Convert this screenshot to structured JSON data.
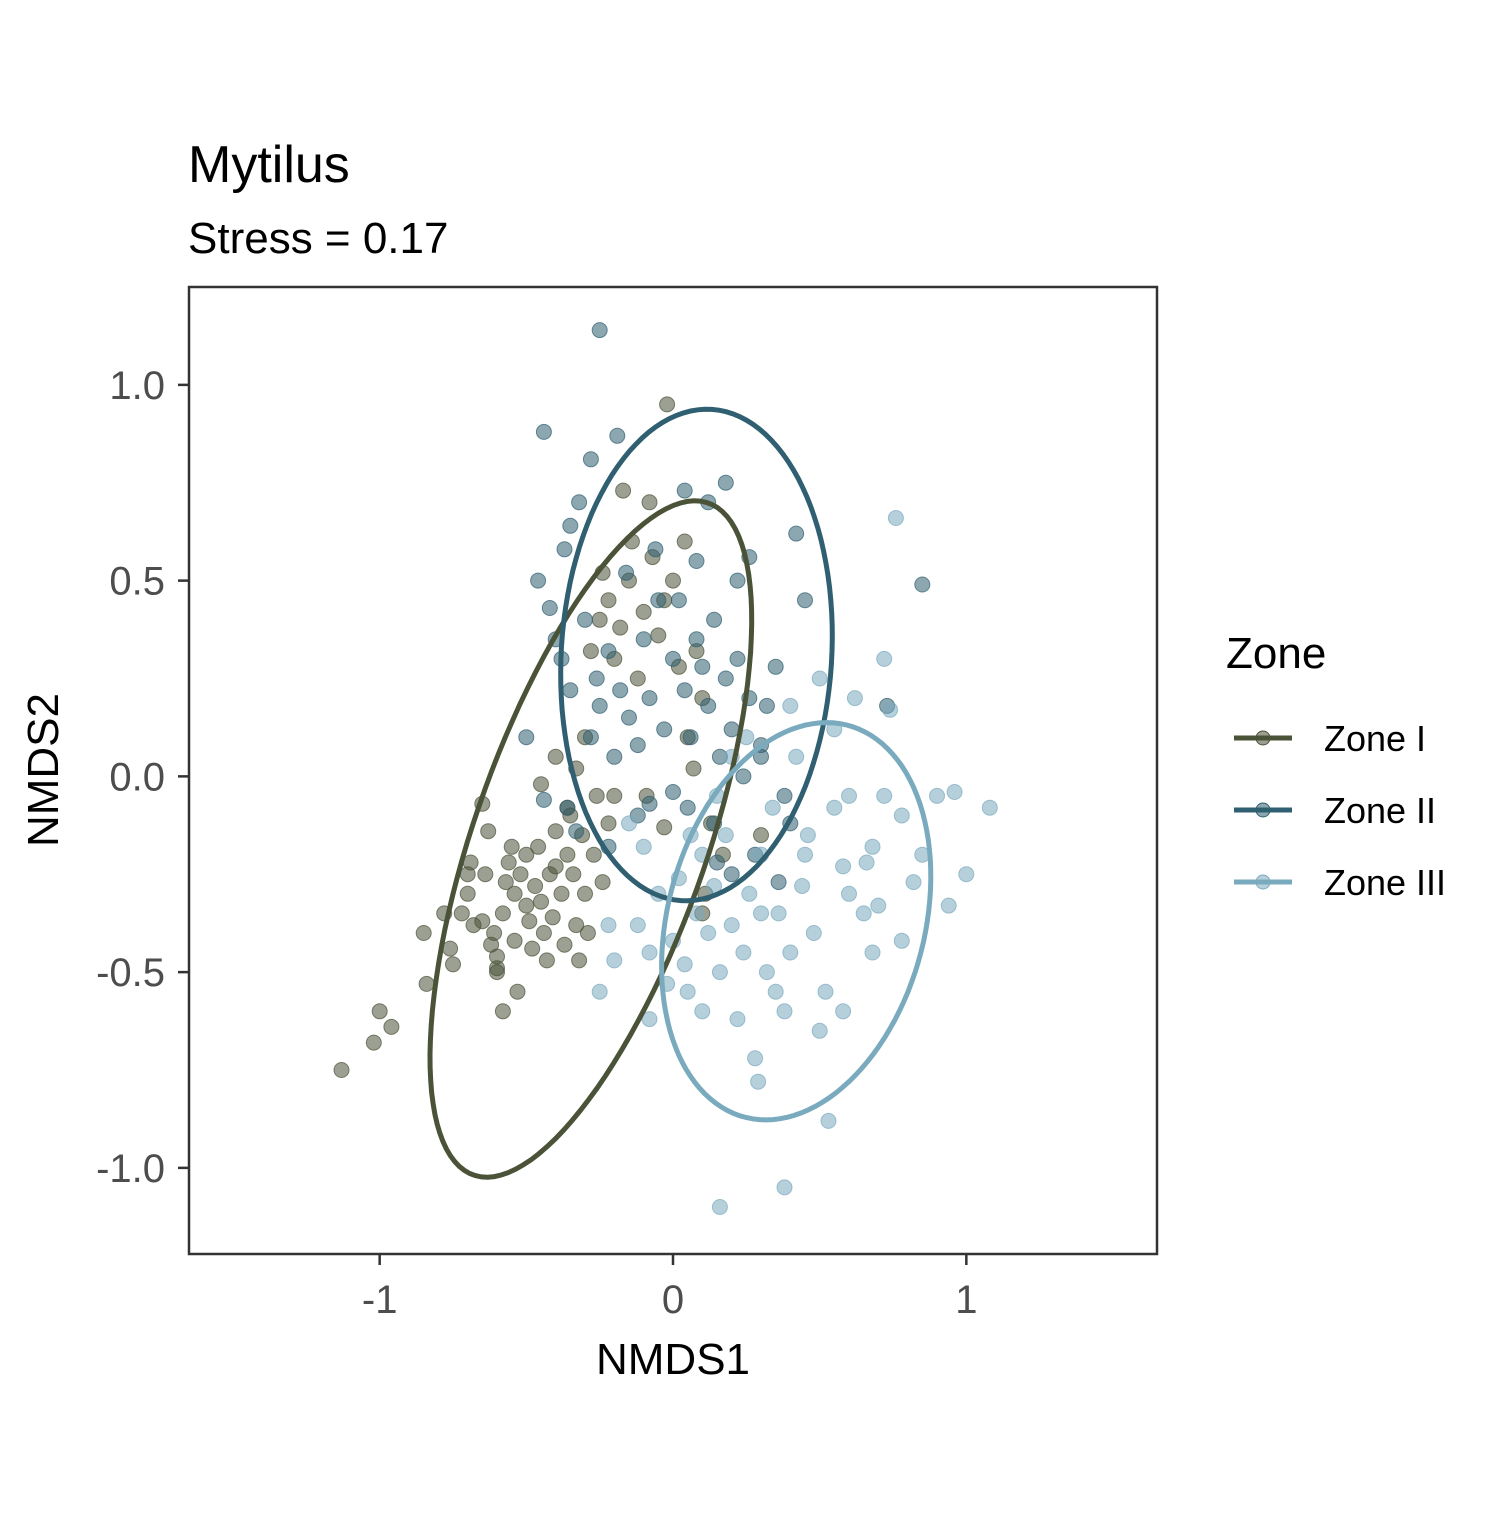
{
  "chart_data": {
    "type": "scatter",
    "title": "Mytilus",
    "subtitle": "Stress = 0.17",
    "xlabel": "NMDS1",
    "ylabel": "NMDS2",
    "xlim": [
      -1.65,
      1.65
    ],
    "ylim": [
      -1.22,
      1.25
    ],
    "x_ticks": [
      -1,
      0,
      1
    ],
    "x_tick_labels": [
      "-1",
      "0",
      "1"
    ],
    "y_ticks": [
      -1.0,
      -0.5,
      0.0,
      0.5,
      1.0
    ],
    "y_tick_labels": [
      "-1.0",
      "-0.5",
      "0.0",
      "0.5",
      "1.0"
    ],
    "grid": false,
    "legend": {
      "title": "Zone",
      "position": "right"
    },
    "series": [
      {
        "name": "Zone I",
        "color": "#4a5238",
        "ellipse": {
          "center": [
            -0.28,
            -0.16
          ],
          "semi_axes": [
            0.95,
            0.38
          ],
          "angle_deg": 63
        },
        "points": [
          [
            -1.13,
            -0.75
          ],
          [
            -1.02,
            -0.68
          ],
          [
            -1.0,
            -0.6
          ],
          [
            -0.96,
            -0.64
          ],
          [
            -0.84,
            -0.53
          ],
          [
            -0.85,
            -0.4
          ],
          [
            -0.78,
            -0.35
          ],
          [
            -0.75,
            -0.48
          ],
          [
            -0.72,
            -0.35
          ],
          [
            -0.7,
            -0.3
          ],
          [
            -0.7,
            -0.25
          ],
          [
            -0.69,
            -0.22
          ],
          [
            -0.65,
            -0.37
          ],
          [
            -0.64,
            -0.25
          ],
          [
            -0.63,
            -0.14
          ],
          [
            -0.65,
            -0.07
          ],
          [
            -0.62,
            -0.43
          ],
          [
            -0.61,
            -0.4
          ],
          [
            -0.6,
            -0.46
          ],
          [
            -0.6,
            -0.5
          ],
          [
            -0.58,
            -0.35
          ],
          [
            -0.58,
            -0.6
          ],
          [
            -0.57,
            -0.27
          ],
          [
            -0.56,
            -0.22
          ],
          [
            -0.55,
            -0.18
          ],
          [
            -0.54,
            -0.3
          ],
          [
            -0.54,
            -0.42
          ],
          [
            -0.53,
            -0.55
          ],
          [
            -0.52,
            -0.25
          ],
          [
            -0.5,
            -0.2
          ],
          [
            -0.5,
            -0.33
          ],
          [
            -0.49,
            -0.37
          ],
          [
            -0.48,
            -0.44
          ],
          [
            -0.47,
            -0.28
          ],
          [
            -0.46,
            -0.18
          ],
          [
            -0.45,
            -0.32
          ],
          [
            -0.44,
            -0.4
          ],
          [
            -0.43,
            -0.47
          ],
          [
            -0.42,
            -0.25
          ],
          [
            -0.41,
            -0.36
          ],
          [
            -0.4,
            -0.14
          ],
          [
            -0.4,
            -0.23
          ],
          [
            -0.38,
            -0.3
          ],
          [
            -0.37,
            -0.43
          ],
          [
            -0.36,
            -0.2
          ],
          [
            -0.35,
            -0.1
          ],
          [
            -0.34,
            -0.25
          ],
          [
            -0.33,
            -0.38
          ],
          [
            -0.32,
            -0.47
          ],
          [
            -0.31,
            -0.15
          ],
          [
            -0.3,
            -0.3
          ],
          [
            -0.29,
            -0.4
          ],
          [
            -0.27,
            -0.2
          ],
          [
            -0.26,
            -0.05
          ],
          [
            -0.24,
            -0.27
          ],
          [
            -0.22,
            -0.12
          ],
          [
            -0.45,
            -0.02
          ],
          [
            -0.4,
            0.05
          ],
          [
            -0.36,
            -0.08
          ],
          [
            -0.33,
            0.02
          ],
          [
            -0.3,
            0.1
          ],
          [
            -0.28,
            0.32
          ],
          [
            -0.25,
            0.4
          ],
          [
            -0.24,
            0.52
          ],
          [
            -0.22,
            0.45
          ],
          [
            -0.2,
            0.3
          ],
          [
            -0.18,
            0.38
          ],
          [
            -0.17,
            0.73
          ],
          [
            -0.15,
            0.5
          ],
          [
            -0.14,
            0.6
          ],
          [
            -0.12,
            0.25
          ],
          [
            -0.1,
            0.42
          ],
          [
            -0.08,
            0.7
          ],
          [
            -0.07,
            0.56
          ],
          [
            -0.05,
            0.36
          ],
          [
            -0.03,
            0.45
          ],
          [
            -0.02,
            0.95
          ],
          [
            0.0,
            0.5
          ],
          [
            0.02,
            0.28
          ],
          [
            0.04,
            0.6
          ],
          [
            0.05,
            0.1
          ],
          [
            0.07,
            0.02
          ],
          [
            0.1,
            0.2
          ],
          [
            0.13,
            -0.12
          ],
          [
            -0.03,
            -0.13
          ],
          [
            -0.09,
            -0.05
          ],
          [
            0.17,
            -0.2
          ],
          [
            0.11,
            -0.3
          ],
          [
            0.08,
            0.32
          ],
          [
            -0.2,
            -0.05
          ],
          [
            0.1,
            -0.35
          ],
          [
            0.3,
            -0.15
          ],
          [
            -0.6,
            -0.49
          ],
          [
            -0.68,
            -0.38
          ],
          [
            -0.76,
            -0.44
          ]
        ]
      },
      {
        "name": "Zone II",
        "color": "#2f5f70",
        "ellipse": {
          "center": [
            0.08,
            0.31
          ],
          "semi_axes": [
            0.63,
            0.46
          ],
          "angle_deg": 83
        },
        "points": [
          [
            -0.25,
            1.14
          ],
          [
            -0.44,
            0.88
          ],
          [
            -0.28,
            0.81
          ],
          [
            -0.19,
            0.87
          ],
          [
            -0.32,
            0.7
          ],
          [
            -0.35,
            0.64
          ],
          [
            -0.37,
            0.58
          ],
          [
            -0.46,
            0.5
          ],
          [
            -0.42,
            0.43
          ],
          [
            -0.4,
            0.35
          ],
          [
            -0.38,
            0.3
          ],
          [
            -0.35,
            0.22
          ],
          [
            -0.3,
            0.4
          ],
          [
            -0.28,
            0.1
          ],
          [
            -0.25,
            0.18
          ],
          [
            -0.22,
            0.32
          ],
          [
            -0.2,
            0.05
          ],
          [
            -0.18,
            0.22
          ],
          [
            -0.15,
            0.15
          ],
          [
            -0.12,
            0.08
          ],
          [
            -0.1,
            0.35
          ],
          [
            -0.08,
            0.2
          ],
          [
            -0.05,
            0.45
          ],
          [
            -0.03,
            0.12
          ],
          [
            0.0,
            0.3
          ],
          [
            0.02,
            0.45
          ],
          [
            0.04,
            0.22
          ],
          [
            0.06,
            0.1
          ],
          [
            0.08,
            0.35
          ],
          [
            0.1,
            0.28
          ],
          [
            0.12,
            0.18
          ],
          [
            0.14,
            0.4
          ],
          [
            0.16,
            0.05
          ],
          [
            0.18,
            0.25
          ],
          [
            0.2,
            0.12
          ],
          [
            0.22,
            0.5
          ],
          [
            0.24,
            0.0
          ],
          [
            0.26,
            0.2
          ],
          [
            0.3,
            0.08
          ],
          [
            0.32,
            0.18
          ],
          [
            0.35,
            0.28
          ],
          [
            0.38,
            -0.05
          ],
          [
            0.4,
            -0.12
          ],
          [
            0.42,
            0.62
          ],
          [
            0.45,
            0.45
          ],
          [
            -0.5,
            0.1
          ],
          [
            -0.44,
            -0.06
          ],
          [
            -0.33,
            -0.14
          ],
          [
            -0.22,
            -0.18
          ],
          [
            -0.12,
            -0.1
          ],
          [
            0.05,
            -0.08
          ],
          [
            0.15,
            -0.22
          ],
          [
            0.28,
            -0.2
          ],
          [
            0.36,
            -0.27
          ],
          [
            0.18,
            0.75
          ],
          [
            0.12,
            0.7
          ],
          [
            0.04,
            0.73
          ],
          [
            0.85,
            0.49
          ],
          [
            0.73,
            0.18
          ],
          [
            0.26,
            0.56
          ],
          [
            -0.06,
            0.58
          ],
          [
            -0.26,
            0.25
          ],
          [
            0.0,
            -0.04
          ],
          [
            0.22,
            0.3
          ],
          [
            0.3,
            0.05
          ],
          [
            -0.16,
            0.52
          ],
          [
            0.08,
            0.55
          ],
          [
            -0.08,
            -0.07
          ],
          [
            0.14,
            -0.12
          ],
          [
            -0.36,
            -0.08
          ],
          [
            0.2,
            -0.25
          ]
        ]
      },
      {
        "name": "Zone III",
        "color": "#7aaabe",
        "ellipse": {
          "center": [
            0.42,
            -0.37
          ],
          "semi_axes": [
            0.54,
            0.42
          ],
          "angle_deg": 57
        },
        "points": [
          [
            0.76,
            0.66
          ],
          [
            0.96,
            -0.04
          ],
          [
            1.08,
            -0.08
          ],
          [
            1.0,
            -0.25
          ],
          [
            0.94,
            -0.33
          ],
          [
            0.82,
            -0.27
          ],
          [
            0.78,
            -0.1
          ],
          [
            0.74,
            0.17
          ],
          [
            0.72,
            0.3
          ],
          [
            0.68,
            -0.18
          ],
          [
            0.65,
            -0.35
          ],
          [
            0.6,
            -0.05
          ],
          [
            0.58,
            -0.23
          ],
          [
            0.55,
            0.12
          ],
          [
            0.52,
            -0.55
          ],
          [
            0.5,
            -0.65
          ],
          [
            0.48,
            -0.4
          ],
          [
            0.46,
            -0.15
          ],
          [
            0.44,
            -0.28
          ],
          [
            0.42,
            0.05
          ],
          [
            0.4,
            -0.45
          ],
          [
            0.38,
            -0.6
          ],
          [
            0.36,
            -0.35
          ],
          [
            0.34,
            -0.08
          ],
          [
            0.32,
            -0.5
          ],
          [
            0.3,
            -0.2
          ],
          [
            0.28,
            -0.72
          ],
          [
            0.26,
            -0.3
          ],
          [
            0.24,
            -0.45
          ],
          [
            0.22,
            -0.62
          ],
          [
            0.2,
            -0.38
          ],
          [
            0.18,
            -0.15
          ],
          [
            0.16,
            -0.5
          ],
          [
            0.14,
            -0.28
          ],
          [
            0.12,
            -0.4
          ],
          [
            0.1,
            -0.6
          ],
          [
            0.08,
            -0.35
          ],
          [
            0.06,
            -0.15
          ],
          [
            0.04,
            -0.48
          ],
          [
            0.02,
            -0.26
          ],
          [
            0.0,
            -0.42
          ],
          [
            -0.02,
            -0.53
          ],
          [
            -0.05,
            -0.3
          ],
          [
            -0.08,
            -0.45
          ],
          [
            -0.1,
            -0.18
          ],
          [
            -0.12,
            -0.38
          ],
          [
            -0.15,
            -0.12
          ],
          [
            -0.2,
            -0.47
          ],
          [
            -0.25,
            -0.55
          ],
          [
            -0.22,
            -0.38
          ],
          [
            0.53,
            -0.88
          ],
          [
            0.38,
            -1.05
          ],
          [
            0.16,
            -1.1
          ],
          [
            0.29,
            -0.78
          ],
          [
            0.85,
            -0.2
          ],
          [
            0.9,
            -0.05
          ],
          [
            0.68,
            -0.45
          ],
          [
            0.58,
            -0.6
          ],
          [
            0.62,
            0.2
          ],
          [
            0.7,
            -0.33
          ],
          [
            0.25,
            0.1
          ],
          [
            0.2,
            0.05
          ],
          [
            0.5,
            0.25
          ],
          [
            0.4,
            0.18
          ],
          [
            0.55,
            -0.08
          ],
          [
            0.35,
            -0.55
          ],
          [
            0.45,
            -0.2
          ],
          [
            0.15,
            -0.05
          ],
          [
            0.3,
            -0.35
          ],
          [
            0.1,
            -0.2
          ],
          [
            0.05,
            -0.55
          ],
          [
            -0.08,
            -0.62
          ],
          [
            0.6,
            -0.3
          ],
          [
            0.78,
            -0.42
          ],
          [
            0.66,
            -0.22
          ],
          [
            0.72,
            -0.05
          ]
        ]
      }
    ]
  }
}
